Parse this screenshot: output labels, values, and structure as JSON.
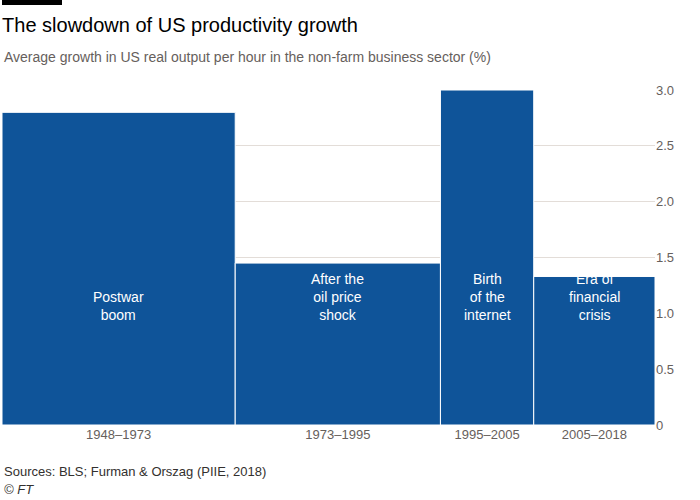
{
  "chart_data": {
    "type": "bar",
    "title": "The slowdown of US productivity growth",
    "subtitle": "Average growth in US real output per hour in the non-farm business sector (%)",
    "categories": [
      "1948–1973",
      "1973–1995",
      "1995–2005",
      "2005–2018"
    ],
    "bins": [
      1948,
      1973,
      1995,
      2005,
      2018
    ],
    "values": [
      2.8,
      1.45,
      3.0,
      1.33
    ],
    "bar_labels": [
      "Postwar boom",
      "After the oil price shock",
      "Birth of the internet",
      "Era of financial crisis"
    ],
    "color": "#0f5499",
    "xlim": [
      1948,
      2018
    ],
    "ylim": [
      0,
      3
    ],
    "yticks": [
      0,
      0.5,
      {
        "value": 1,
        "label": "1.0"
      },
      1.5,
      {
        "value": 2,
        "label": "2.0"
      },
      2.5,
      {
        "value": 3,
        "label": "3.0"
      }
    ],
    "grid": true,
    "source": "Sources: BLS; Furman & Orszag (PIIE, 2018)",
    "credit": "© FT"
  }
}
